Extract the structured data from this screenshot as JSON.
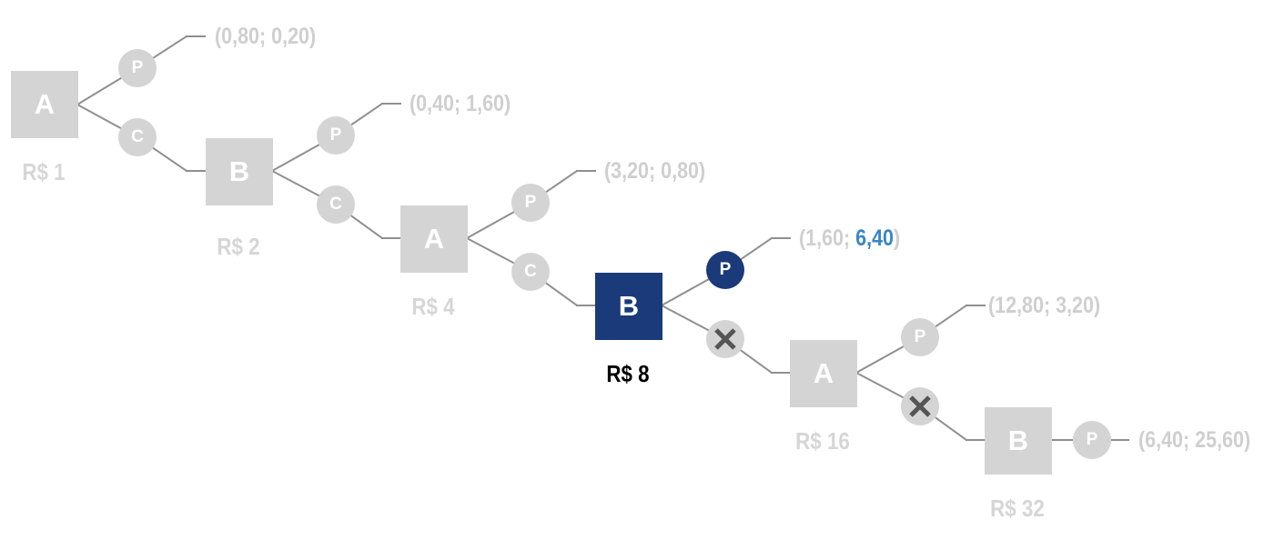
{
  "colors": {
    "inactive_fill": "#d4d4d4",
    "active_fill": "#1b3a7a",
    "highlight_text": "#3a86c6",
    "line": "#8f8f8f"
  },
  "nodes": [
    {
      "player": "A",
      "stake": "R$ 1",
      "state": "inactive"
    },
    {
      "player": "B",
      "stake": "R$ 2",
      "state": "inactive"
    },
    {
      "player": "A",
      "stake": "R$ 4",
      "state": "inactive"
    },
    {
      "player": "B",
      "stake": "R$ 8",
      "state": "active"
    },
    {
      "player": "A",
      "stake": "R$ 16",
      "state": "inactive"
    },
    {
      "player": "B",
      "stake": "R$ 32",
      "state": "inactive"
    }
  ],
  "actions": {
    "take": "P",
    "continue": "C",
    "blocked_icon": "x-mark-icon"
  },
  "payoffs": [
    {
      "open": "(",
      "a": "0,80",
      "sep": "; ",
      "b": "0,20",
      "close": ")"
    },
    {
      "open": "(",
      "a": "0,40",
      "sep": "; ",
      "b": "1,60",
      "close": ")"
    },
    {
      "open": "(",
      "a": "3,20",
      "sep": "; ",
      "b": "0,80",
      "close": ")"
    },
    {
      "open": "(",
      "a": "1,60",
      "sep": "; ",
      "b": "6,40",
      "close": ")",
      "highlight_b": true
    },
    {
      "open": "(",
      "a": "12,80",
      "sep": "; ",
      "b": "3,20",
      "close": ")"
    },
    {
      "open": "(",
      "a": "6,40",
      "sep": "; ",
      "b": "25,60",
      "close": ")"
    }
  ]
}
